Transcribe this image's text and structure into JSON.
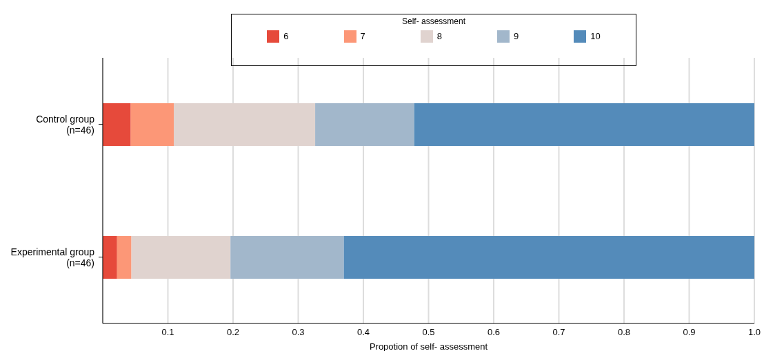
{
  "chart_data": {
    "type": "bar",
    "orientation": "horizontal",
    "stacked": true,
    "categories": [
      "Control group\n(n=46)",
      "Experimental group\n(n=46)"
    ],
    "series": [
      {
        "name": "6",
        "color": "#e64a3b",
        "values": [
          0.043,
          0.022
        ]
      },
      {
        "name": "7",
        "color": "#fc9777",
        "values": [
          0.066,
          0.022
        ]
      },
      {
        "name": "8",
        "color": "#e0d3cf",
        "values": [
          0.217,
          0.152
        ]
      },
      {
        "name": "9",
        "color": "#a2b7cb",
        "values": [
          0.152,
          0.174
        ]
      },
      {
        "name": "10",
        "color": "#548bba",
        "values": [
          0.522,
          0.63
        ]
      }
    ],
    "xlabel": "Propotion of self- assessment",
    "legend_title": "Self- assessment",
    "legend": "top",
    "xlim": [
      0,
      1
    ],
    "xticks": [
      0.1,
      0.2,
      0.3,
      0.4,
      0.5,
      0.6,
      0.7,
      0.8,
      0.9,
      {
        "value": 1,
        "label": "1.0"
      }
    ],
    "grid": "x"
  }
}
